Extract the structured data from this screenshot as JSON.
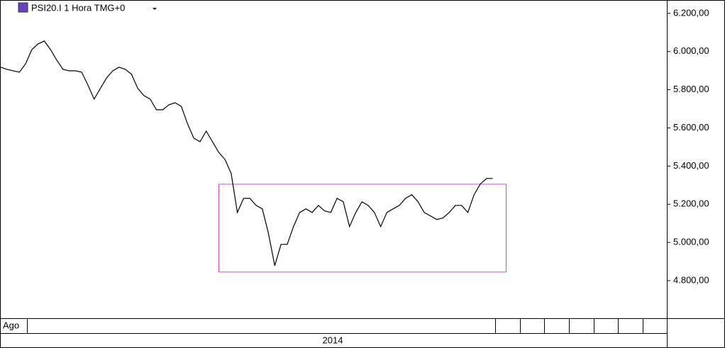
{
  "chart_data": {
    "type": "line",
    "title": "PSI20.I 1 Hora TMG+0",
    "categories": [
      "Ago",
      null,
      null,
      null,
      null,
      null,
      null,
      null,
      null,
      null,
      null,
      null,
      null,
      null,
      null,
      null,
      null,
      null,
      null,
      null,
      null,
      null,
      null,
      null,
      null,
      null,
      null,
      null,
      null,
      null,
      null,
      null,
      null,
      null,
      null,
      null,
      null,
      null,
      null,
      null,
      null,
      null,
      null,
      null,
      null,
      null,
      null,
      null,
      null,
      null,
      null,
      null,
      null,
      null,
      null,
      null,
      null,
      null,
      null,
      null,
      null,
      null,
      null,
      null,
      null,
      null,
      null,
      null,
      null,
      null,
      null,
      null,
      null,
      null,
      null,
      null,
      null,
      null,
      null,
      null
    ],
    "year_label": "2014",
    "series": [
      {
        "name": "PSI20.I",
        "color": "#000000",
        "values": [
          5918,
          5907,
          5899,
          5892,
          5936,
          6010,
          6040,
          6055,
          6010,
          5955,
          5907,
          5899,
          5899,
          5892,
          5825,
          5751,
          5807,
          5862,
          5899,
          5918,
          5907,
          5881,
          5807,
          5769,
          5751,
          5695,
          5695,
          5721,
          5732,
          5713,
          5621,
          5546,
          5528,
          5583,
          5528,
          5472,
          5435,
          5361,
          5157,
          5231,
          5231,
          5194,
          5176,
          5046,
          4878,
          4990,
          4990,
          5083,
          5157,
          5176,
          5157,
          5194,
          5165,
          5157,
          5231,
          5213,
          5083,
          5157,
          5213,
          5194,
          5157,
          5083,
          5157,
          5176,
          5194,
          5231,
          5250,
          5213,
          5157,
          5139,
          5120,
          5128,
          5157,
          5194,
          5194,
          5157,
          5250,
          5306,
          5335,
          5335
        ]
      }
    ],
    "box": {
      "y": [
        4845,
        5305
      ],
      "color": "#e040e0"
    },
    "ylim": [
      4603,
      6270
    ],
    "yticks": [
      {
        "value": 4800,
        "label": "4.800,00"
      },
      {
        "value": 5000,
        "label": "5.000,00"
      },
      {
        "value": 5200,
        "label": "5.200,00"
      },
      {
        "value": 5400,
        "label": "5.400,00"
      },
      {
        "value": 5600,
        "label": "5.600,00"
      },
      {
        "value": 5800,
        "label": "5.800,00"
      },
      {
        "value": 6000,
        "label": "6.000,00"
      },
      {
        "value": 6200,
        "label": "6.200,00"
      }
    ]
  }
}
